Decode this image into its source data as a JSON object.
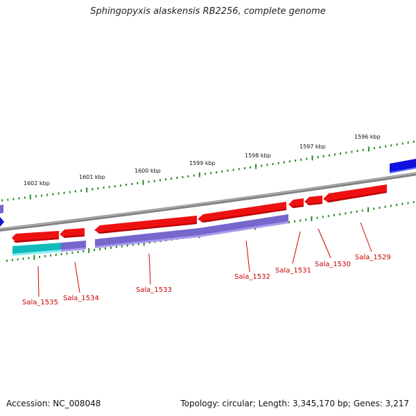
{
  "title": "Sphingopyxis alaskensis RB2256, complete genome",
  "footer": {
    "accession": "Accession: NC_008048",
    "summary": "Topology: circular; Length: 3,345,170 bp; Genes: 3,217"
  },
  "ruler": [
    "1602 kbp",
    "1601 kbp",
    "1600 kbp",
    "1599 kbp",
    "1598 kbp",
    "1597 kbp",
    "1596 kbp"
  ],
  "genes": [
    "Sala_1535",
    "Sala_1534",
    "Sala_1533",
    "Sala_1532",
    "Sala_1531",
    "Sala_1530",
    "Sala_1529"
  ],
  "colors": {
    "cds": "#ee1111",
    "cds_dark": "#b80000",
    "gene_purple": "#7766cc",
    "gene_cyan": "#11bbbb",
    "blue_feature": "#1111dd",
    "backbone": "#808080",
    "tick": "#228822"
  }
}
